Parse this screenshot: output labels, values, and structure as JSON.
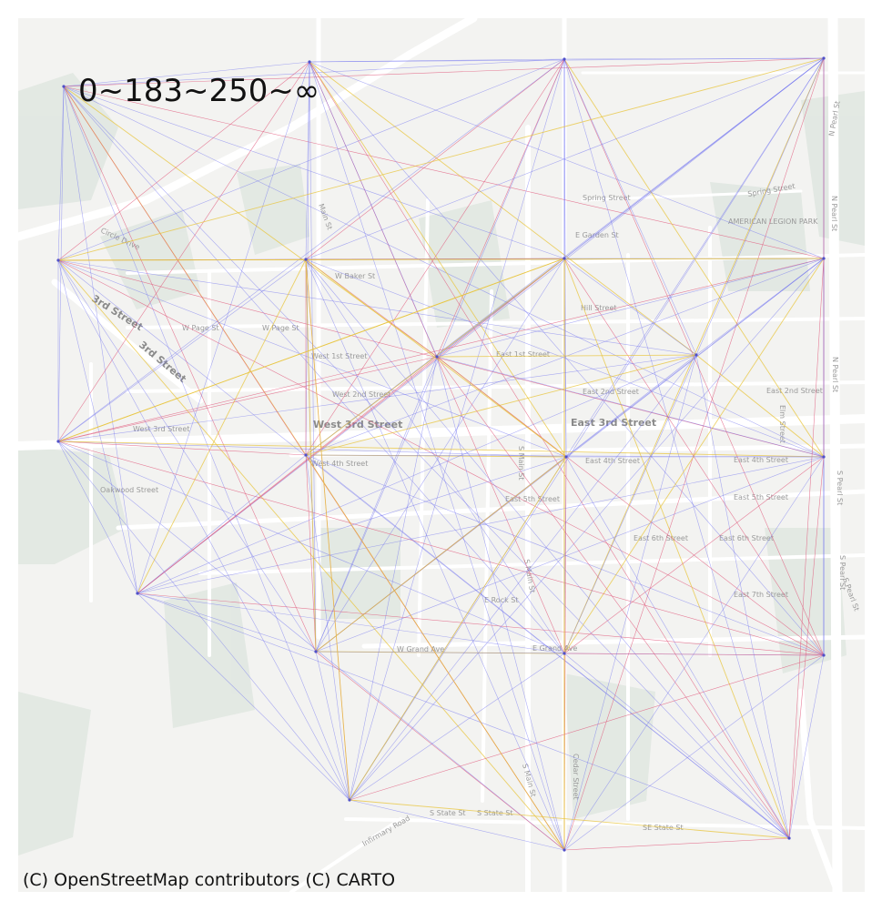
{
  "legend": {
    "title": "0~183~250~∞"
  },
  "attribution": "(C) OpenStreetMap contributors (C) CARTO",
  "colors": {
    "background": "#f3f3f1",
    "park": "#dde4de",
    "road": "#ffffff",
    "edge_low": "#6a6cf0",
    "edge_mid": "#e0567a",
    "edge_high": "#e8c43a"
  },
  "streets": [
    {
      "name": "Spring Street"
    },
    {
      "name": "Spring Street"
    },
    {
      "name": "E Garden St"
    },
    {
      "name": "AMERICAN LEGION PARK"
    },
    {
      "name": "W Baker St"
    },
    {
      "name": "Hill Street"
    },
    {
      "name": "W Page St"
    },
    {
      "name": "W Page St"
    },
    {
      "name": "West 1st Street"
    },
    {
      "name": "East 1st Street"
    },
    {
      "name": "West 2nd Street"
    },
    {
      "name": "East 2nd Street"
    },
    {
      "name": "East 2nd Street"
    },
    {
      "name": "West 3rd Street"
    },
    {
      "name": "East 3rd Street"
    },
    {
      "name": "West 3rd Street"
    },
    {
      "name": "West 4th Street"
    },
    {
      "name": "East 4th Street"
    },
    {
      "name": "East 4th Street"
    },
    {
      "name": "Oakwood Street"
    },
    {
      "name": "East 5th Street"
    },
    {
      "name": "East 5th Street"
    },
    {
      "name": "East 6th Street"
    },
    {
      "name": "East 6th Street"
    },
    {
      "name": "East 7th Street"
    },
    {
      "name": "E Rock St"
    },
    {
      "name": "W Grand Ave"
    },
    {
      "name": "E Grand Ave"
    },
    {
      "name": "S State St"
    },
    {
      "name": "S State St"
    },
    {
      "name": "SE State St"
    },
    {
      "name": "3rd Street"
    },
    {
      "name": "3rd Street"
    },
    {
      "name": "N Pearl St"
    },
    {
      "name": "N Pearl St"
    },
    {
      "name": "N Pearl St"
    },
    {
      "name": "S Pearl St"
    },
    {
      "name": "S Pearl St"
    },
    {
      "name": "S Pearl St"
    },
    {
      "name": "S Main St"
    },
    {
      "name": "S Main St"
    },
    {
      "name": "S Main St"
    },
    {
      "name": "Main St"
    },
    {
      "name": "Circle Drive"
    },
    {
      "name": "Infirmary Road"
    },
    {
      "name": "Cedar Street"
    },
    {
      "name": "Elm Street"
    }
  ],
  "nodes": [
    {
      "id": 0,
      "name": "node-nw"
    },
    {
      "id": 1,
      "name": "node-n1"
    },
    {
      "id": 2,
      "name": "node-n2"
    },
    {
      "id": 3,
      "name": "node-ne"
    },
    {
      "id": 4,
      "name": "node-w1"
    },
    {
      "id": 5,
      "name": "node-c1"
    },
    {
      "id": 6,
      "name": "node-c2"
    },
    {
      "id": 7,
      "name": "node-e1"
    },
    {
      "id": 8,
      "name": "node-w2"
    },
    {
      "id": 9,
      "name": "node-c3"
    },
    {
      "id": 10,
      "name": "node-c4"
    },
    {
      "id": 11,
      "name": "node-e2"
    },
    {
      "id": 12,
      "name": "node-sw1"
    },
    {
      "id": 13,
      "name": "node-c5"
    },
    {
      "id": 14,
      "name": "node-c6"
    },
    {
      "id": 15,
      "name": "node-e3"
    },
    {
      "id": 16,
      "name": "node-s1"
    },
    {
      "id": 17,
      "name": "node-s2"
    },
    {
      "id": 18,
      "name": "node-se"
    },
    {
      "id": 19,
      "name": "node-mid"
    },
    {
      "id": 20,
      "name": "node-mid2"
    }
  ]
}
